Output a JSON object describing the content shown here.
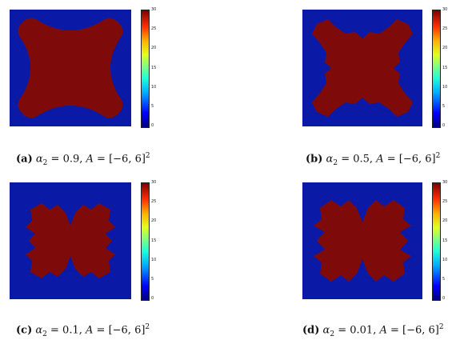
{
  "panels": [
    {
      "id": "a",
      "label": "(a)",
      "alpha_value": "0.9",
      "domain_text": "[−6, 6]",
      "exponent": "2"
    },
    {
      "id": "b",
      "label": "(b)",
      "alpha_value": "0.5",
      "domain_text": "[−6, 6]",
      "exponent": "2"
    },
    {
      "id": "c",
      "label": "(c)",
      "alpha_value": "0.1",
      "domain_text": "[−6, 6]",
      "exponent": "2"
    },
    {
      "id": "d",
      "label": "(d)",
      "alpha_value": "0.01",
      "domain_text": "[−6, 6]",
      "exponent": "2"
    }
  ],
  "colorbar_ticks": [
    "30",
    "25",
    "20",
    "15",
    "10",
    "5",
    "0"
  ],
  "colors": {
    "background_field": "#0a1aa6",
    "fractal_fill": "#7f0a0a"
  }
}
